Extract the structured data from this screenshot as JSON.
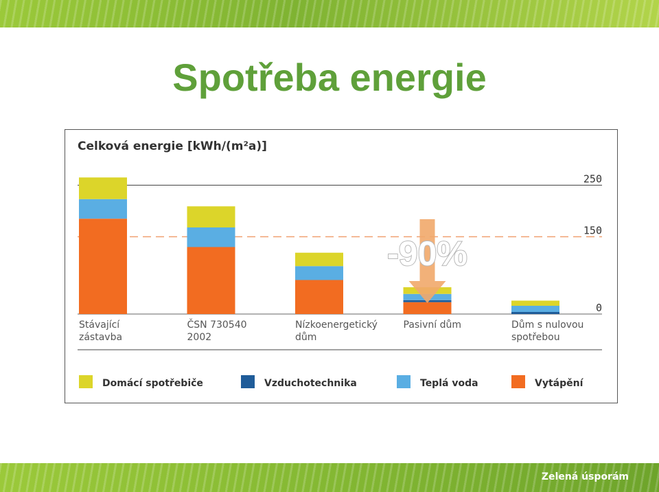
{
  "slide": {
    "title": "Spotřeba energie",
    "brand": "Zelená úsporám"
  },
  "colors": {
    "domaci_spotrebice": "#dcd52a",
    "vzduchotechnika": "#1f5c99",
    "tepla_voda": "#5aaee3",
    "vytapeni": "#f26c21",
    "arrow": "#f1a86a",
    "reference_line": "#f0a070",
    "title_green": "#5fa03a"
  },
  "chart_data": {
    "type": "bar",
    "stacked": true,
    "title": "Celková energie [kWh/(m²a)]",
    "categories": [
      [
        "Stávající",
        "zástavba"
      ],
      [
        "ČSN 730540",
        "2002"
      ],
      [
        "Nízkoenergetický",
        "dům"
      ],
      [
        "Pasivní dům"
      ],
      [
        "Dům s nulovou",
        "spotřebou"
      ]
    ],
    "series": [
      {
        "name": "Vytápění",
        "color_key": "vytapeni",
        "values": [
          185,
          130,
          66,
          23,
          0
        ]
      },
      {
        "name": "Vzduchotechnika",
        "color_key": "vzduchotechnika",
        "values": [
          0,
          0,
          0,
          4,
          4
        ]
      },
      {
        "name": "Teplá voda",
        "color_key": "tepla_voda",
        "values": [
          38,
          38,
          27,
          12,
          12
        ]
      },
      {
        "name": "Domácí spotřebiče",
        "color_key": "domaci_spotrebice",
        "values": [
          42,
          41,
          26,
          13,
          10
        ]
      }
    ],
    "legend_order": [
      "Domácí spotřebiče",
      "Vzduchotechnika",
      "Teplá voda",
      "Vytápění"
    ],
    "y_ticks": [
      250,
      150,
      0
    ],
    "reference_line": 150,
    "annotation": "-90%",
    "ylim": [
      0,
      270
    ],
    "legend_position": "bottom"
  }
}
